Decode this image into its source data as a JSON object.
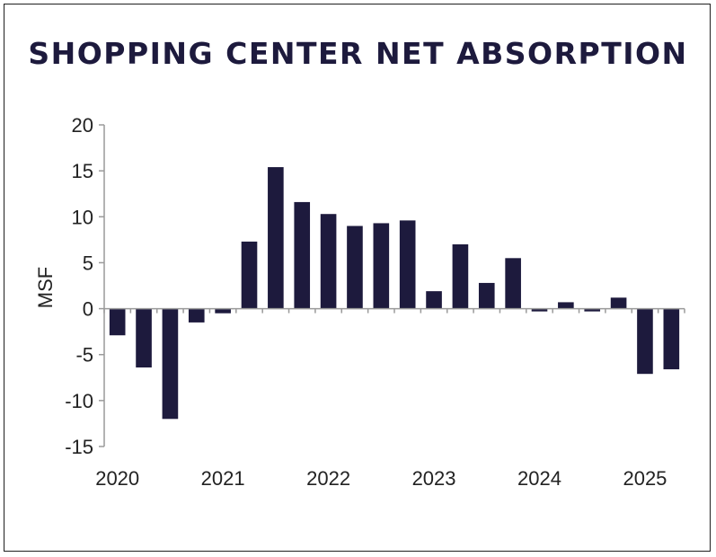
{
  "chart_data": {
    "type": "bar",
    "title": "SHOPPING CENTER NET ABSORPTION",
    "ylabel": "MSF",
    "xlabel": "",
    "ylim": [
      -15,
      20
    ],
    "yticks": [
      20,
      15,
      10,
      5,
      0,
      -5,
      -10,
      -15
    ],
    "ytick_labels": [
      "20",
      "15",
      "10",
      "5",
      "0",
      "-5",
      "-10",
      "-15"
    ],
    "x_year_labels": [
      "2020",
      "2021",
      "2022",
      "2023",
      "2024",
      "2025"
    ],
    "categories": [
      "2020Q1",
      "2020Q2",
      "2020Q3",
      "2020Q4",
      "2021Q1",
      "2021Q2",
      "2021Q3",
      "2021Q4",
      "2022Q1",
      "2022Q2",
      "2022Q3",
      "2022Q4",
      "2023Q1",
      "2023Q2",
      "2023Q3",
      "2023Q4",
      "2024Q1",
      "2024Q2",
      "2024Q3",
      "2024Q4",
      "2025Q1",
      "2025Q2"
    ],
    "values": [
      -2.9,
      -6.4,
      -12.0,
      -1.5,
      -0.5,
      7.3,
      15.4,
      11.6,
      10.3,
      9.0,
      9.3,
      9.6,
      1.9,
      7.0,
      2.8,
      5.5,
      -0.3,
      0.7,
      -0.3,
      1.2,
      -7.1,
      -6.6
    ],
    "bar_color": "#1d1a3d"
  }
}
